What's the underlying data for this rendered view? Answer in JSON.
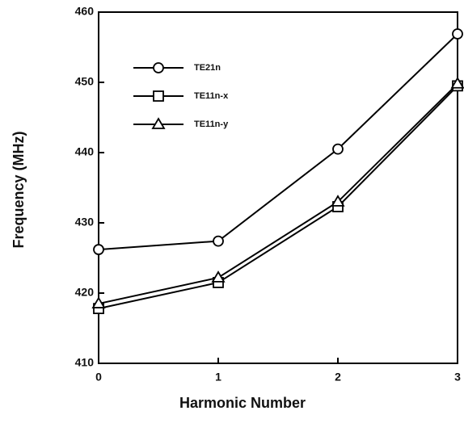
{
  "chart_data": {
    "type": "line",
    "x_label": "Harmonic Number",
    "y_label": "Frequency  (MHz)",
    "x": [
      0,
      1,
      2,
      3
    ],
    "series": [
      {
        "name": "TE21n",
        "color": "#000000",
        "marker": "circle",
        "values": [
          426.2,
          427.4,
          440.5,
          456.9
        ]
      },
      {
        "name": "TE11n-x",
        "color": "#000000",
        "marker": "square",
        "values": [
          417.8,
          421.5,
          432.3,
          449.5
        ]
      },
      {
        "name": "TE11n-y",
        "color": "#000000",
        "marker": "triangle",
        "values": [
          418.5,
          422.2,
          433,
          449.8
        ]
      }
    ],
    "xlim": [
      0,
      3
    ],
    "xticks": [
      0,
      1,
      2,
      3
    ],
    "ylim": [
      410,
      460
    ],
    "yticks": [
      410,
      420,
      430,
      440,
      450,
      460
    ],
    "legend": "upper left"
  }
}
